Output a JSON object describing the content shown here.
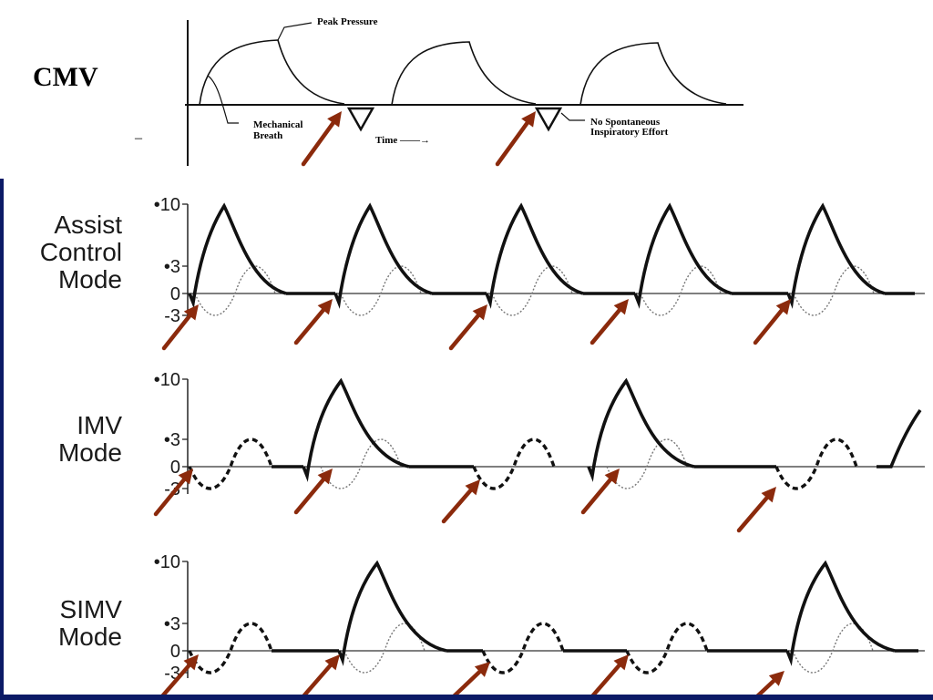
{
  "cmv": {
    "title": "CMV",
    "dash": "–",
    "labels": {
      "peak_pressure": "Peak Pressure",
      "mechanical_breath_1": "Mechanical",
      "mechanical_breath_2": "Breath",
      "time": "Time ——→",
      "no_spont_1": "No Spontaneous",
      "no_spont_2": "Inspiratory Effort"
    }
  },
  "panels": [
    {
      "id": "assist-control",
      "label_lines": [
        "Assist",
        "Control",
        "Mode"
      ],
      "ticks": [
        "•10",
        "•3",
        "0",
        "-3"
      ]
    },
    {
      "id": "imv",
      "label_lines": [
        "IMV",
        "Mode"
      ],
      "ticks": [
        "•10",
        "•3",
        "0",
        "-3"
      ]
    },
    {
      "id": "simv",
      "label_lines": [
        "SIMV",
        "Mode"
      ],
      "ticks": [
        "•10",
        "•3",
        "0",
        "-3"
      ]
    }
  ],
  "colors": {
    "arrow": "#8b2a0c",
    "frame": "#0b1a66",
    "trace": "#111111"
  }
}
